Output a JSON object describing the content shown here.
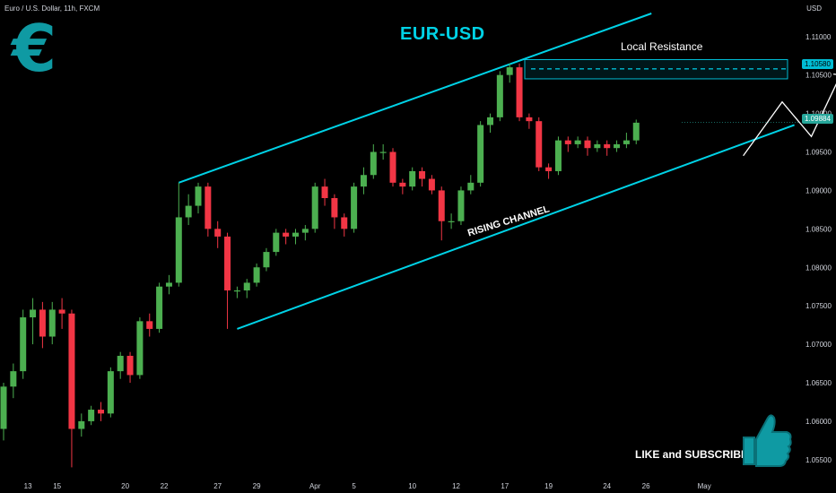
{
  "header": "Euro / U.S. Dollar, 11h, FXCM",
  "currency": "USD",
  "title": "EUR-USD",
  "euro_symbol": "€",
  "labels": {
    "local_resistance": "Local Resistance",
    "rising_channel": "RISING CHANNEL",
    "like_subscribe": "LIKE and SUBSCRIBE"
  },
  "tags": {
    "resistance": "1.10580",
    "last": "1.09884"
  },
  "colors": {
    "bg": "#000000",
    "up": "#4caf50",
    "down": "#f23645",
    "channel": "#00d2e6",
    "resistance_box": "#00bcd4"
  },
  "icons": [
    "euro-icon",
    "thumbs-up-icon"
  ],
  "chart_data": {
    "type": "candlestick",
    "ylim": [
      1.053,
      1.113
    ],
    "yticks": [
      "1.05500",
      "1.06000",
      "1.06500",
      "1.07000",
      "1.07500",
      "1.08000",
      "1.08500",
      "1.09000",
      "1.09500",
      "1.10000",
      "1.10500",
      "1.11000"
    ],
    "ytick_values": [
      1.055,
      1.06,
      1.065,
      1.07,
      1.075,
      1.08,
      1.085,
      1.09,
      1.095,
      1.1,
      1.105,
      1.11
    ],
    "xticks": [
      "13",
      "15",
      "20",
      "22",
      "27",
      "29",
      "Apr",
      "5",
      "10",
      "12",
      "17",
      "19",
      "24",
      "26",
      "May"
    ],
    "xtick_index": [
      2.5,
      5.5,
      12.5,
      16.5,
      22,
      26,
      32,
      36,
      42,
      46.5,
      51.5,
      56,
      62,
      66,
      72
    ],
    "candles": [
      [
        1.059,
        1.0645,
        1.0575,
        1.065
      ],
      [
        1.0645,
        1.0665,
        1.063,
        1.0675
      ],
      [
        1.0665,
        1.0735,
        1.0655,
        1.0745
      ],
      [
        1.0735,
        1.0745,
        1.07,
        1.076
      ],
      [
        1.0745,
        1.071,
        1.0695,
        1.0755
      ],
      [
        1.071,
        1.0745,
        1.07,
        1.0755
      ],
      [
        1.0745,
        1.074,
        1.072,
        1.076
      ],
      [
        1.074,
        1.059,
        1.054,
        1.0745
      ],
      [
        1.059,
        1.06,
        1.058,
        1.061
      ],
      [
        1.06,
        1.0615,
        1.0595,
        1.062
      ],
      [
        1.0615,
        1.061,
        1.06,
        1.0625
      ],
      [
        1.061,
        1.0665,
        1.0605,
        1.067
      ],
      [
        1.0665,
        1.0685,
        1.0655,
        1.069
      ],
      [
        1.0685,
        1.066,
        1.065,
        1.069
      ],
      [
        1.066,
        1.073,
        1.0655,
        1.0735
      ],
      [
        1.073,
        1.072,
        1.071,
        1.074
      ],
      [
        1.072,
        1.0775,
        1.0715,
        1.078
      ],
      [
        1.0775,
        1.078,
        1.0765,
        1.079
      ],
      [
        1.078,
        1.0865,
        1.0775,
        1.091
      ],
      [
        1.0865,
        1.088,
        1.0855,
        1.0895
      ],
      [
        1.088,
        1.0905,
        1.087,
        1.091
      ],
      [
        1.0905,
        1.085,
        1.084,
        1.091
      ],
      [
        1.085,
        1.084,
        1.0825,
        1.086
      ],
      [
        1.084,
        1.077,
        1.072,
        1.0845
      ],
      [
        1.077,
        1.077,
        1.076,
        1.0775
      ],
      [
        1.077,
        1.078,
        1.076,
        1.0785
      ],
      [
        1.078,
        1.08,
        1.0775,
        1.0805
      ],
      [
        1.08,
        1.082,
        1.0795,
        1.0825
      ],
      [
        1.082,
        1.0845,
        1.0815,
        1.085
      ],
      [
        1.0845,
        1.084,
        1.083,
        1.085
      ],
      [
        1.084,
        1.0845,
        1.083,
        1.085
      ],
      [
        1.0845,
        1.085,
        1.0835,
        1.0855
      ],
      [
        1.085,
        1.0905,
        1.0845,
        1.091
      ],
      [
        1.0905,
        1.089,
        1.088,
        1.0915
      ],
      [
        1.089,
        1.0865,
        1.085,
        1.0895
      ],
      [
        1.0865,
        1.085,
        1.084,
        1.087
      ],
      [
        1.085,
        1.0905,
        1.0845,
        1.091
      ],
      [
        1.0905,
        1.092,
        1.0895,
        1.093
      ],
      [
        1.092,
        1.095,
        1.0915,
        1.096
      ],
      [
        1.095,
        1.095,
        1.094,
        1.096
      ],
      [
        1.095,
        1.091,
        1.0905,
        1.0955
      ],
      [
        1.091,
        1.0905,
        1.0895,
        1.0915
      ],
      [
        1.0905,
        1.0925,
        1.09,
        1.093
      ],
      [
        1.0925,
        1.0915,
        1.0905,
        1.093
      ],
      [
        1.0915,
        1.09,
        1.0895,
        1.092
      ],
      [
        1.09,
        1.086,
        1.0835,
        1.0905
      ],
      [
        1.086,
        1.086,
        1.085,
        1.087
      ],
      [
        1.086,
        1.09,
        1.0855,
        1.0905
      ],
      [
        1.09,
        1.091,
        1.0895,
        1.092
      ],
      [
        1.091,
        1.0985,
        1.0905,
        1.099
      ],
      [
        1.0985,
        1.0995,
        1.0975,
        1.1
      ],
      [
        1.0995,
        1.105,
        1.099,
        1.1055
      ],
      [
        1.105,
        1.106,
        1.104,
        1.1065
      ],
      [
        1.106,
        1.0995,
        1.099,
        1.1065
      ],
      [
        1.0995,
        1.099,
        1.098,
        1.1
      ],
      [
        1.099,
        1.093,
        1.0925,
        1.0995
      ],
      [
        1.093,
        1.0925,
        1.0915,
        1.0935
      ],
      [
        1.0925,
        1.0965,
        1.092,
        1.097
      ],
      [
        1.0965,
        1.096,
        1.095,
        1.097
      ],
      [
        1.096,
        1.0965,
        1.0955,
        1.097
      ],
      [
        1.0965,
        1.0955,
        1.0945,
        1.097
      ],
      [
        1.0955,
        1.096,
        1.095,
        1.0965
      ],
      [
        1.096,
        1.0955,
        1.0945,
        1.0965
      ],
      [
        1.0955,
        1.096,
        1.095,
        1.0965
      ],
      [
        1.096,
        1.0965,
        1.0955,
        1.0975
      ],
      [
        1.0965,
        1.0988,
        1.096,
        1.0992
      ]
    ],
    "channel_upper": [
      [
        1.091,
        "1.1120"
      ],
      [
        0,
        0
      ]
    ],
    "channel": {
      "upper": [
        [
          18,
          1.091
        ],
        [
          85,
          1.113
        ]
      ],
      "lower": [
        [
          24,
          1.072
        ],
        [
          96,
          1.0985
        ]
      ]
    },
    "resistance_zone": [
      1.1045,
      1.107
    ],
    "resistance_level": 1.1058,
    "projection": [
      [
        76,
        1.0945
      ],
      [
        80,
        1.1015
      ],
      [
        83,
        1.097
      ],
      [
        86,
        1.105
      ]
    ],
    "last_price": 1.09884
  }
}
